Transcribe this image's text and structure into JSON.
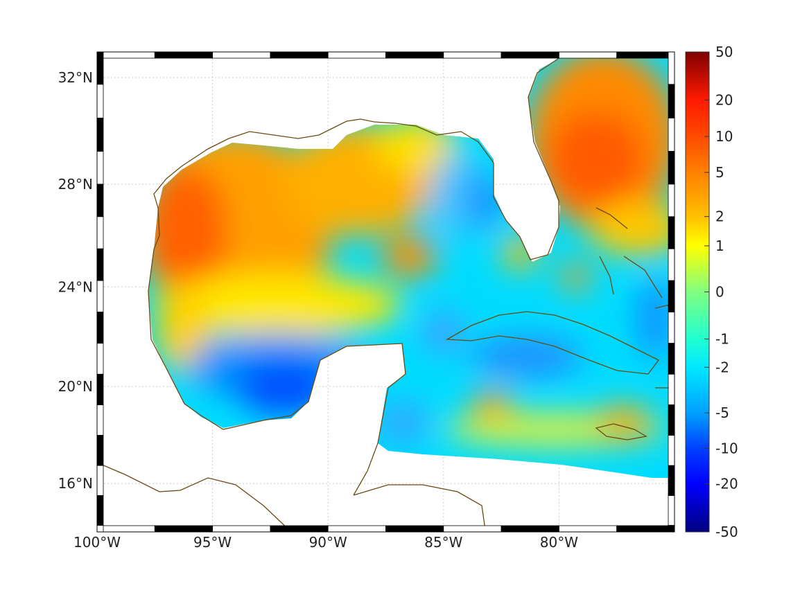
{
  "map": {
    "lon_range": [
      -100,
      -75
    ],
    "lat_range": [
      14,
      33
    ],
    "x_ticks": [
      {
        "lon": -100,
        "label": "100°W"
      },
      {
        "lon": -95,
        "label": "95°W"
      },
      {
        "lon": -90,
        "label": "90°W"
      },
      {
        "lon": -85,
        "label": "85°W"
      },
      {
        "lon": -80,
        "label": "80°W"
      }
    ],
    "y_ticks": [
      {
        "lat": 32,
        "label": "32°N"
      },
      {
        "lat": 28,
        "label": "28°N"
      },
      {
        "lat": 24,
        "label": "24°N"
      },
      {
        "lat": 20,
        "label": "20°N"
      },
      {
        "lat": 16,
        "label": "16°N"
      }
    ],
    "coastline_color": "#6b4a10"
  },
  "colorbar": {
    "ticks": [
      "50",
      "20",
      "10",
      "5",
      "2",
      "1",
      "0",
      "-1",
      "-2",
      "-5",
      "-10",
      "-20",
      "-50"
    ],
    "colors": [
      "#7f0000",
      "#ff1a00",
      "#ff4a00",
      "#ff8000",
      "#ffc000",
      "#ffff00",
      "#80ff80",
      "#20ffd0",
      "#00e8ff",
      "#00a0ff",
      "#0040ff",
      "#0000ff",
      "#00007f"
    ]
  }
}
